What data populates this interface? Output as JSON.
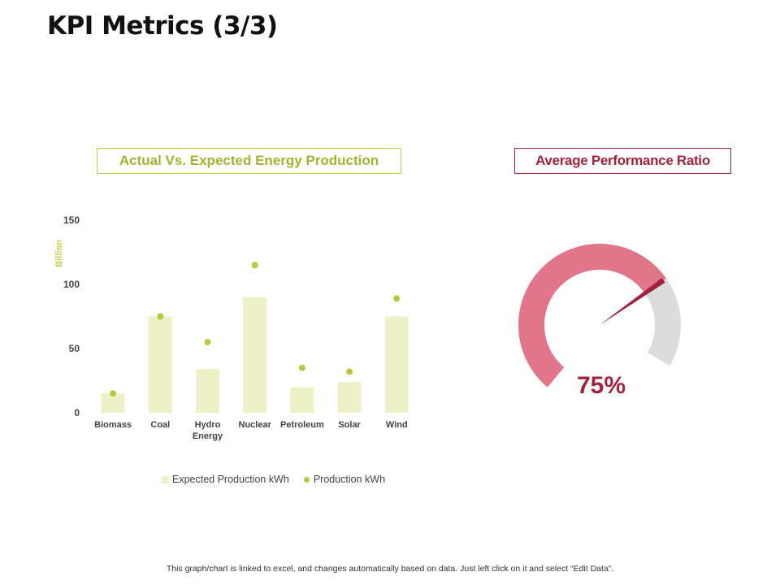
{
  "page": {
    "title": "KPI Metrics (3/3)",
    "footer_note": "This graph/chart is linked to excel,  and changes automatically based on data. Just left click on it and select “Edit Data”."
  },
  "chart_data": [
    {
      "type": "bar",
      "title": "Actual Vs. Expected Energy Production",
      "ylabel": "Billion",
      "xlabel": "",
      "ylim": [
        0,
        150
      ],
      "yticks": [
        0,
        50,
        100,
        150
      ],
      "grid": false,
      "legend_position": "bottom",
      "categories": [
        [
          "Biomass"
        ],
        [
          "Coal"
        ],
        [
          "Hydro",
          "Energy"
        ],
        [
          "Nuclear"
        ],
        [
          "Petroleum"
        ],
        [
          "Solar"
        ],
        [
          "Wind"
        ]
      ],
      "series": [
        {
          "name": "Expected Production kWh",
          "mark": "bar",
          "color": "#eef0c8",
          "values": [
            15,
            75,
            34,
            90,
            20,
            24,
            75
          ]
        },
        {
          "name": "Production kWh",
          "mark": "dot",
          "color": "#bcc83a",
          "values": [
            15,
            75,
            55,
            115,
            35,
            32,
            89
          ]
        }
      ]
    },
    {
      "type": "gauge",
      "title": "Average Performance Ratio",
      "value": 75,
      "value_label": "75%",
      "min": 0,
      "max": 100,
      "fill_color": "#e1768a",
      "track_color": "#dcdcdc",
      "needle_color": "#a3223d"
    }
  ]
}
